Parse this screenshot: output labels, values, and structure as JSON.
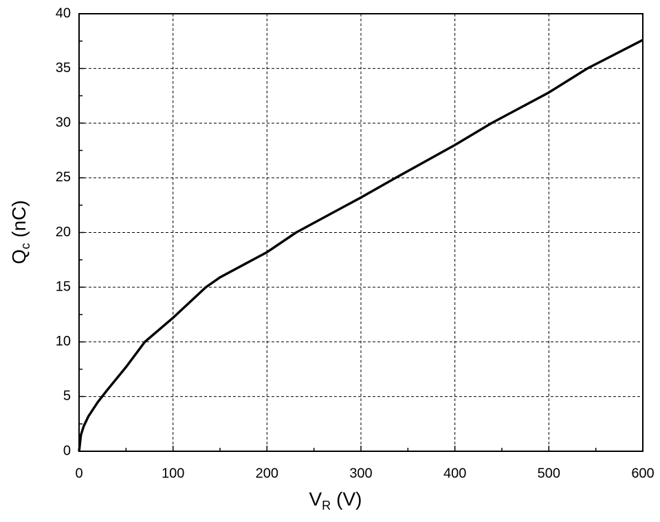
{
  "chart_data": {
    "type": "line",
    "x_label": {
      "main": "V",
      "sub": "R",
      "unit": "(V)"
    },
    "y_label": {
      "main": "Q",
      "sub": "c",
      "unit": "(nC)"
    },
    "x": [
      0,
      2,
      5,
      10,
      20,
      30,
      50,
      70,
      100,
      135,
      150,
      200,
      231,
      300,
      337,
      400,
      439,
      500,
      541,
      600
    ],
    "series": [
      {
        "color": "#000000",
        "values": [
          0,
          1.5,
          2.3,
          3.2,
          4.5,
          5.6,
          7.7,
          10,
          12.2,
          15,
          15.9,
          18.2,
          20,
          23.2,
          25,
          28,
          30,
          32.8,
          35,
          37.6
        ]
      }
    ],
    "xlim": [
      0,
      600
    ],
    "ylim": [
      0,
      40
    ],
    "xticks": [
      0,
      100,
      200,
      300,
      400,
      500,
      600
    ],
    "yticks": [
      0,
      5,
      10,
      15,
      20,
      25,
      30,
      35,
      40
    ],
    "xminorticks": [
      50,
      150,
      250,
      350,
      450,
      550
    ],
    "yminorticks": [
      2.5,
      7.5,
      12.5,
      17.5,
      22.5,
      27.5,
      32.5,
      37.5
    ],
    "grid": true
  }
}
